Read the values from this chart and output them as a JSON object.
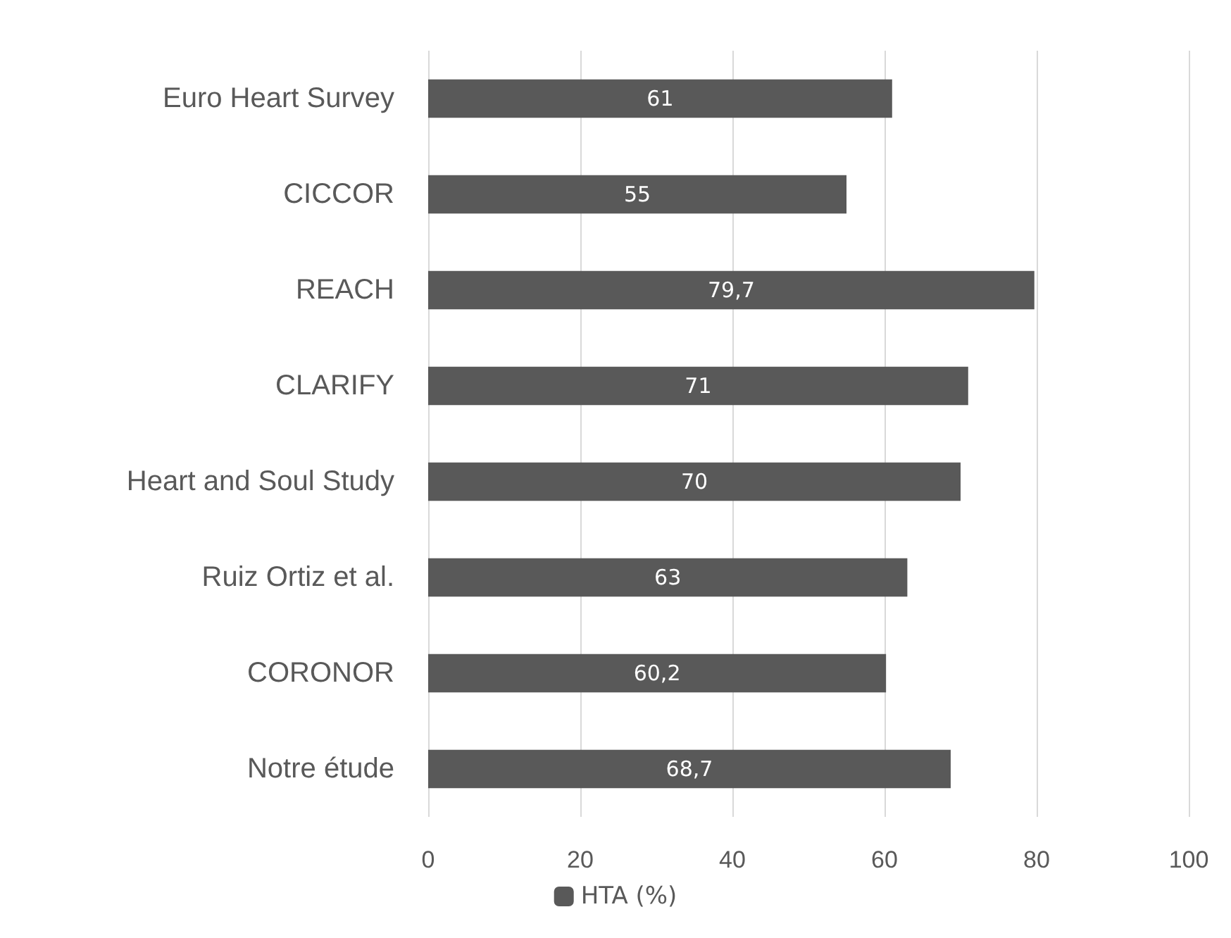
{
  "chart_data": {
    "type": "bar",
    "orientation": "horizontal",
    "categories": [
      "Euro Heart Survey",
      "CICCOR",
      "REACH",
      "CLARIFY",
      "Heart and Soul Study",
      "Ruiz Ortiz et al.",
      "CORONOR",
      "Notre étude"
    ],
    "series": [
      {
        "name": "HTA (%)",
        "color": "#595959",
        "values": [
          61,
          55,
          79.7,
          71,
          70,
          63,
          60.2,
          68.7
        ],
        "value_labels": [
          "61",
          "55",
          "79,7",
          "71",
          "70",
          "63",
          "60,2",
          "68,7"
        ]
      }
    ],
    "xlim": [
      0,
      100
    ],
    "xticks": [
      0,
      20,
      40,
      60,
      80,
      100
    ],
    "grid": "x",
    "legend": "bottom"
  }
}
